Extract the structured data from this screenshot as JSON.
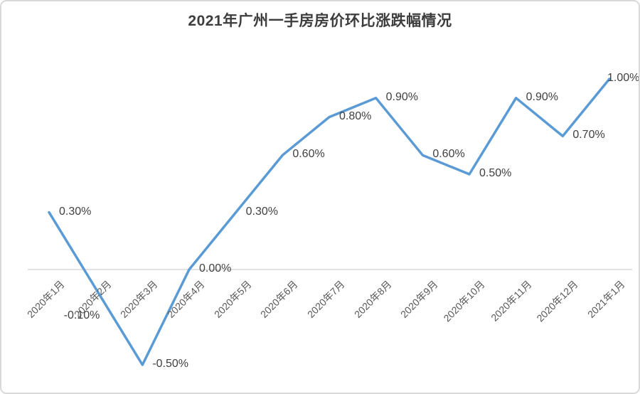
{
  "chart_data": {
    "type": "line",
    "title": "2021年广州一手房房价环比涨跌幅情况",
    "categories": [
      "2020年1月",
      "2020年2月",
      "2020年3月",
      "2020年4月",
      "2020年5月",
      "2020年6月",
      "2020年7月",
      "2020年8月",
      "2020年9月",
      "2020年10月",
      "2020年11月",
      "2020年12月",
      "2021年1月"
    ],
    "values": [
      0.3,
      -0.1,
      -0.5,
      0.0,
      0.3,
      0.6,
      0.8,
      0.9,
      0.6,
      0.5,
      0.9,
      0.7,
      1.0
    ],
    "value_unit": "%",
    "data_labels": [
      "0.30%",
      "-0.10%",
      "-0.50%",
      "0.00%",
      "0.30%",
      "0.60%",
      "0.80%",
      "0.90%",
      "0.60%",
      "0.50%",
      "0.90%",
      "0.70%",
      "1.00%"
    ],
    "label_placements": [
      "right",
      "below",
      "right",
      "right",
      "right",
      "right",
      "right",
      "right",
      "right",
      "right",
      "right",
      "right",
      "end"
    ],
    "xlabel": "",
    "ylabel": "",
    "ylim": [
      -0.6,
      1.1
    ],
    "grid": "zero-baseline-only",
    "legend": "none",
    "xlabel_rotation_deg": -45,
    "line_color": "#5b9bd5",
    "gridline_color": "#d9d9d9",
    "border_color": "#d9d9d9",
    "title_color": "#3d3d3d",
    "data_label_color": "#404040",
    "axis_label_color": "#595959"
  }
}
